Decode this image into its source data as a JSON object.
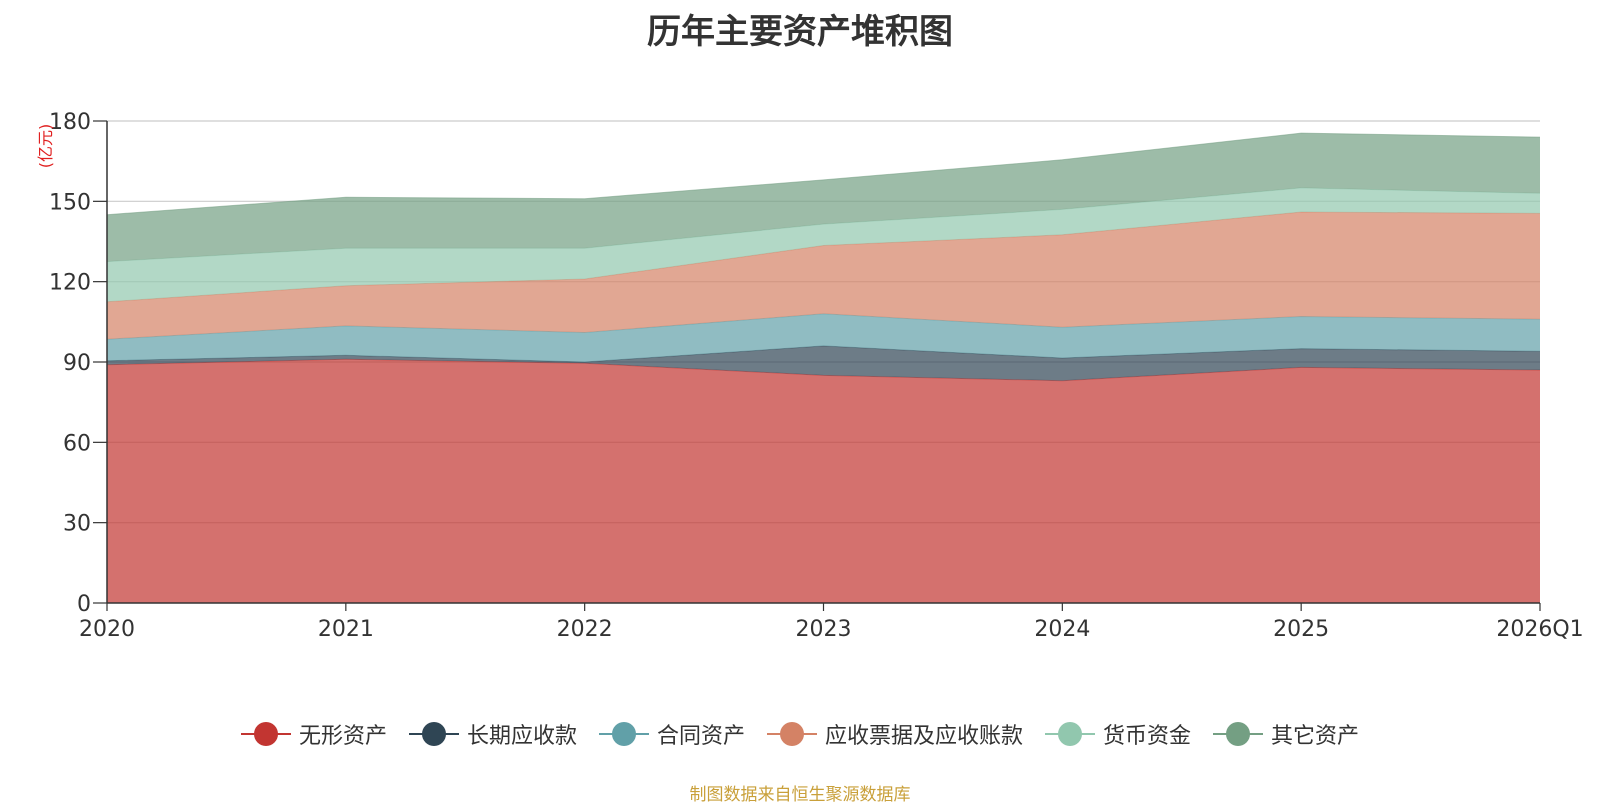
{
  "chart_data": {
    "type": "area",
    "stacked": true,
    "title": "历年主要资产堆积图",
    "ylabel": "(亿元)",
    "xlabel": "",
    "ylim": [
      0,
      180
    ],
    "yticks": [
      0,
      30,
      60,
      90,
      120,
      150,
      180
    ],
    "grid": true,
    "legend_position": "bottom",
    "categories": [
      "2020",
      "2021",
      "2022",
      "2023",
      "2024",
      "2025",
      "2026Q1"
    ],
    "series": [
      {
        "name": "无形资产",
        "color": "#c23531",
        "values": [
          89.0,
          91.0,
          89.5,
          85.0,
          83.0,
          88.0,
          87.0
        ]
      },
      {
        "name": "长期应收款",
        "color": "#2f4554",
        "values": [
          1.5,
          1.5,
          0.5,
          11.0,
          8.5,
          7.0,
          7.0
        ]
      },
      {
        "name": "合同资产",
        "color": "#61a0a8",
        "values": [
          8.0,
          11.0,
          11.0,
          12.0,
          11.5,
          12.0,
          12.0
        ]
      },
      {
        "name": "应收票据及应收账款",
        "color": "#d48265",
        "values": [
          14.0,
          15.0,
          20.0,
          25.5,
          34.5,
          39.0,
          39.5
        ]
      },
      {
        "name": "货币资金",
        "color": "#91c7ae",
        "values": [
          15.0,
          14.0,
          11.5,
          8.0,
          9.5,
          9.0,
          7.5
        ]
      },
      {
        "name": "其它资产",
        "color": "#749f83",
        "values": [
          17.5,
          19.0,
          18.5,
          16.5,
          18.5,
          20.5,
          21.0
        ]
      }
    ],
    "source": "制图数据来自恒生聚源数据库"
  }
}
